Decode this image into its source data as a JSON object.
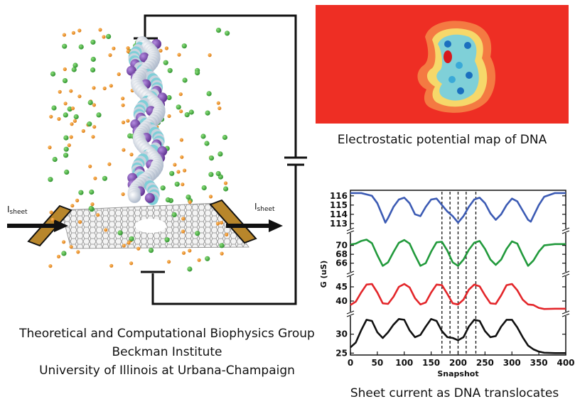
{
  "left_panel": {
    "current_left": {
      "symbol": "I",
      "subscript": "sheet"
    },
    "current_right": {
      "symbol": "I",
      "subscript": "sheet"
    }
  },
  "heatmap": {
    "caption": "Electrostatic potential map of DNA",
    "colors": {
      "background": "#ee2e24",
      "halo": "#f47a42",
      "mid": "#f6d86a",
      "inner": "#7fd0d8",
      "core": "#3aa9d8",
      "deep": "#1a6fbf",
      "hot": "#d7191c"
    }
  },
  "group": {
    "line1": "Theoretical and Computational Biophysics Group",
    "line2": "Beckman Institute",
    "line3": "University of Illinois at Urbana-Champaign"
  },
  "chart_caption": "Sheet current as DNA translocates",
  "chart_data": {
    "type": "line",
    "xlabel": "Snapshot",
    "ylabel": "G (uS)",
    "xlim": [
      0,
      400
    ],
    "xticks": [
      0,
      50,
      100,
      150,
      200,
      250,
      300,
      350,
      400
    ],
    "vlines": [
      170,
      185,
      200,
      215,
      233
    ],
    "series": [
      {
        "color": "#3c5bb4",
        "yticks": [
          113,
          114,
          115,
          116
        ],
        "x": [
          0,
          20,
          40,
          50,
          60,
          65,
          70,
          80,
          90,
          100,
          110,
          120,
          130,
          140,
          150,
          160,
          170,
          180,
          190,
          200,
          210,
          220,
          230,
          240,
          250,
          260,
          270,
          280,
          290,
          300,
          310,
          320,
          330,
          335,
          340,
          350,
          360,
          380,
          400
        ],
        "y": [
          116.3,
          116.3,
          116,
          115.2,
          113.8,
          113.1,
          113.6,
          114.8,
          115.6,
          115.8,
          115.2,
          114,
          113.8,
          114.8,
          115.6,
          115.7,
          115,
          114.3,
          113.8,
          113.1,
          113.8,
          114.8,
          115.6,
          115.8,
          115.2,
          114.1,
          113.4,
          114,
          115,
          115.7,
          115.4,
          114.4,
          113.4,
          113.2,
          113.8,
          115,
          115.9,
          116.3,
          116.3
        ]
      },
      {
        "color": "#229a3c",
        "yticks": [
          66,
          68,
          70
        ],
        "x": [
          0,
          10,
          20,
          30,
          40,
          50,
          60,
          70,
          80,
          90,
          100,
          110,
          120,
          130,
          140,
          150,
          160,
          170,
          180,
          190,
          200,
          210,
          220,
          230,
          240,
          250,
          260,
          270,
          280,
          290,
          300,
          310,
          320,
          330,
          340,
          350,
          360,
          380,
          400
        ],
        "y": [
          70.2,
          70.4,
          71,
          71.3,
          70.5,
          67.8,
          65.4,
          66.2,
          68.5,
          70.6,
          71.2,
          70.4,
          67.8,
          65.4,
          66,
          68.6,
          70.7,
          70.8,
          68.8,
          66.2,
          65.4,
          66.8,
          69,
          70.6,
          71,
          69.2,
          66.8,
          65.6,
          66.8,
          69.2,
          70.9,
          70.4,
          67.8,
          65.4,
          66.6,
          68.6,
          70,
          70.3,
          70.3
        ]
      },
      {
        "color": "#e3262a",
        "yticks": [
          40,
          45
        ],
        "x": [
          0,
          10,
          20,
          30,
          40,
          50,
          60,
          70,
          80,
          90,
          100,
          110,
          120,
          130,
          140,
          150,
          160,
          170,
          180,
          190,
          200,
          210,
          220,
          230,
          240,
          250,
          260,
          270,
          280,
          290,
          300,
          310,
          320,
          330,
          340,
          350,
          360,
          380,
          400
        ],
        "y": [
          38.6,
          39.8,
          43,
          45.8,
          46,
          43,
          39.2,
          39,
          41.5,
          45,
          46,
          44.8,
          41,
          38.8,
          39.5,
          43,
          45.8,
          45.6,
          42.5,
          39.2,
          38.8,
          40.5,
          44,
          45.8,
          45.2,
          42,
          39.2,
          39,
          42,
          45.6,
          46,
          43.8,
          40.5,
          38.8,
          38.6,
          37.6,
          37.2,
          37.3,
          37.3
        ]
      },
      {
        "color": "#111111",
        "yticks": [
          25,
          30
        ],
        "x": [
          0,
          10,
          20,
          30,
          40,
          50,
          60,
          70,
          80,
          90,
          100,
          110,
          120,
          130,
          140,
          150,
          160,
          170,
          180,
          190,
          200,
          210,
          220,
          230,
          240,
          250,
          260,
          270,
          280,
          290,
          300,
          310,
          320,
          330,
          340,
          350,
          360,
          380,
          400
        ],
        "y": [
          26.5,
          27.8,
          31,
          33.8,
          33.5,
          30.5,
          29,
          30.5,
          32.5,
          34,
          33.8,
          31,
          29.2,
          29.8,
          32,
          34,
          33.5,
          30.8,
          29.2,
          29,
          28.4,
          29.2,
          32,
          33.8,
          33.5,
          30.8,
          29.2,
          29.5,
          32,
          33.8,
          33.8,
          31.8,
          29.2,
          27,
          26,
          25.4,
          25.1,
          25,
          25
        ]
      }
    ]
  }
}
